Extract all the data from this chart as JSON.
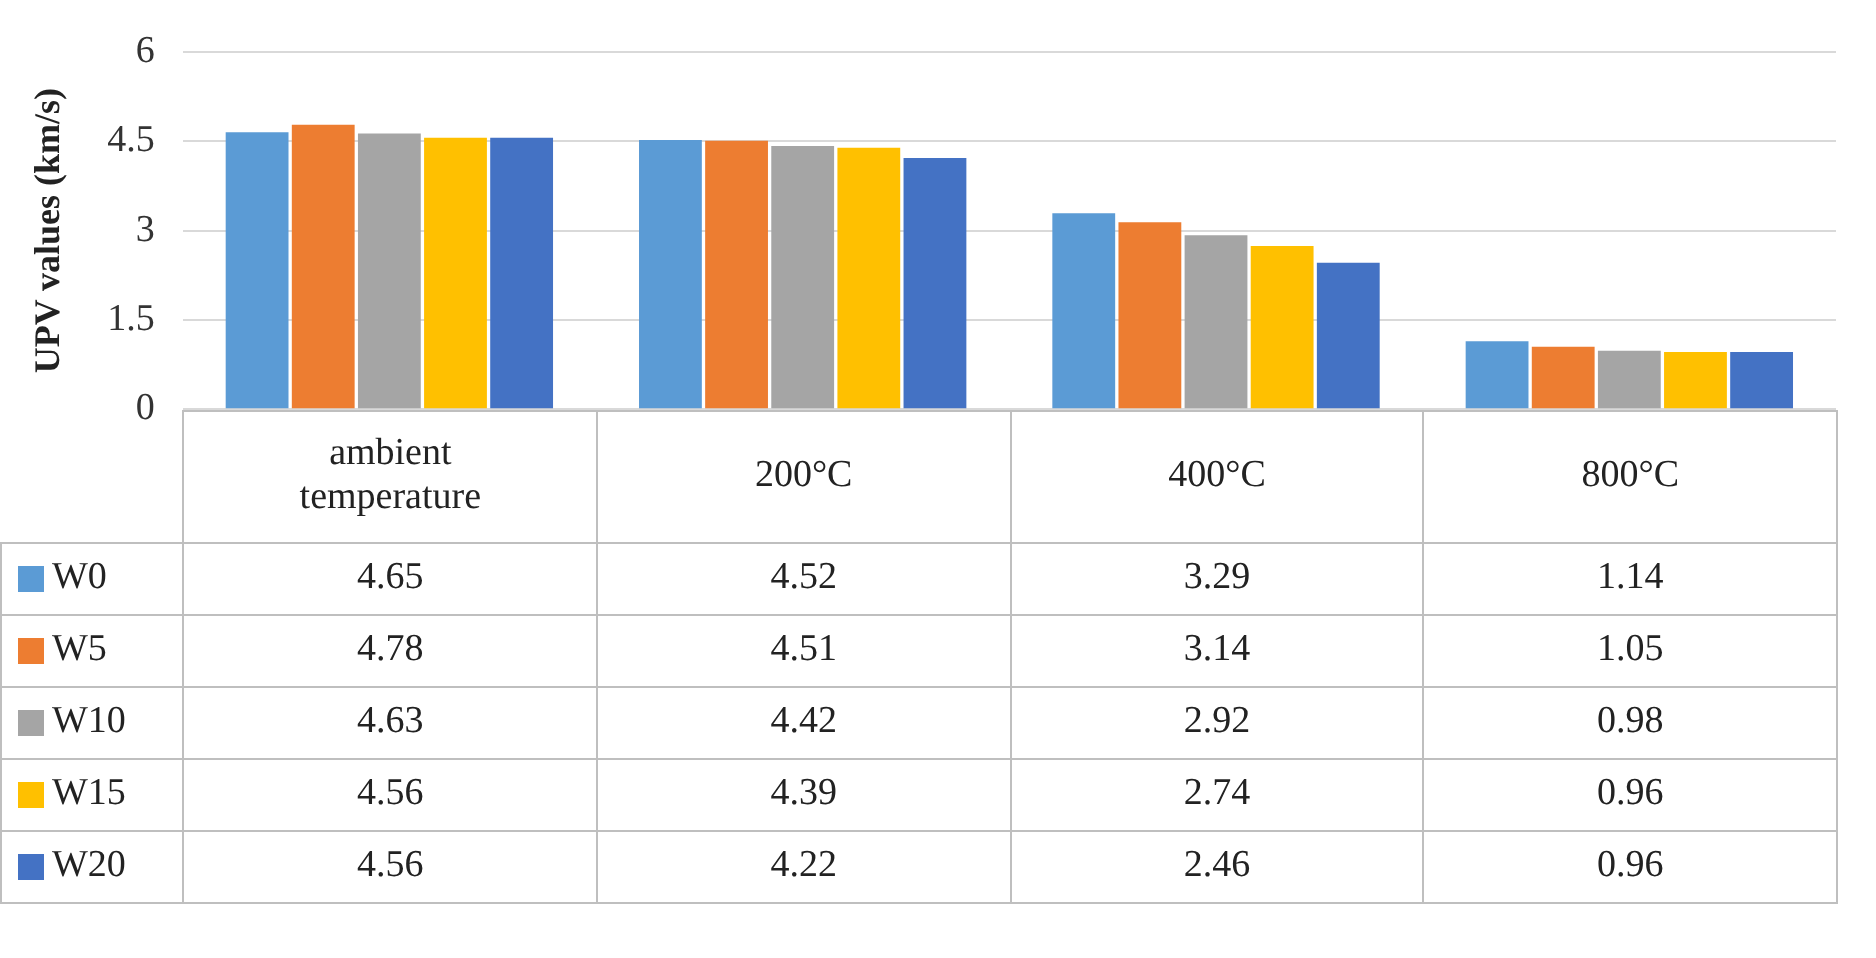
{
  "chart_data": {
    "type": "bar",
    "ylabel": "UPV values (km/s)",
    "categories": [
      "ambient temperature",
      "200°C",
      "400°C",
      "800°C"
    ],
    "series": [
      {
        "name": "W0",
        "color": "#5b9bd5",
        "values": [
          4.65,
          4.52,
          3.29,
          1.14
        ]
      },
      {
        "name": "W5",
        "color": "#ed7d31",
        "values": [
          4.78,
          4.51,
          3.14,
          1.05
        ]
      },
      {
        "name": "W10",
        "color": "#a5a5a5",
        "values": [
          4.63,
          4.42,
          2.92,
          0.98
        ]
      },
      {
        "name": "W15",
        "color": "#ffc000",
        "values": [
          4.56,
          4.39,
          2.74,
          0.96
        ]
      },
      {
        "name": "W20",
        "color": "#4472c4",
        "values": [
          4.56,
          4.22,
          2.46,
          0.96
        ]
      }
    ],
    "ylim": [
      0,
      6
    ],
    "yticks": [
      0,
      1.5,
      3,
      4.5,
      6
    ],
    "grid": "y",
    "legend": "bottom",
    "data_labels": true
  }
}
